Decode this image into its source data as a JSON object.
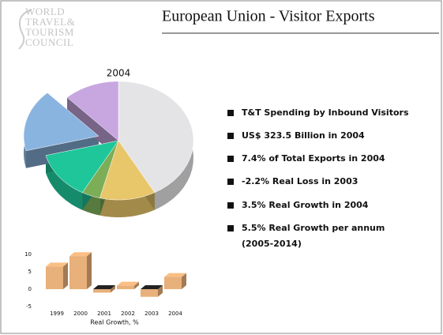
{
  "slide": {
    "title": "European Union - Visitor Exports",
    "logo": [
      "WORLD",
      "TRAVEL&",
      "TOURISM",
      "COUNCIL"
    ],
    "bullets": [
      [
        "T&T Spending by Inbound Visitors"
      ],
      [
        "US$ 323.5 Billion in 2004"
      ],
      [
        "7.4% of Total Exports in 2004"
      ],
      [
        "-2.2% Real Loss in 2003"
      ],
      [
        "3.5% Real Growth in 2004"
      ],
      [
        "5.5% Real Growth per annum",
        "(2005-2014)"
      ]
    ]
  },
  "chart_data": [
    {
      "type": "pie",
      "title": "2004",
      "values": [
        42,
        12,
        4,
        13,
        17,
        12
      ],
      "colors": [
        "#e4e4e6",
        "#e8c66a",
        "#7cae58",
        "#1fc69a",
        "#8ab4e0",
        "#c8a6e0"
      ],
      "exploded": [
        false,
        false,
        false,
        false,
        true,
        false
      ]
    },
    {
      "type": "bar",
      "xlabel": "Real Growth, %",
      "categories": [
        "1999",
        "2000",
        "2001",
        "2002",
        "2003",
        "2004"
      ],
      "values": [
        6.5,
        9.5,
        -1,
        1,
        -2.2,
        3.5
      ],
      "color": "#e8b07a",
      "ylim": [
        -5,
        10
      ],
      "yticks": [
        10,
        5,
        0,
        -5
      ]
    }
  ]
}
